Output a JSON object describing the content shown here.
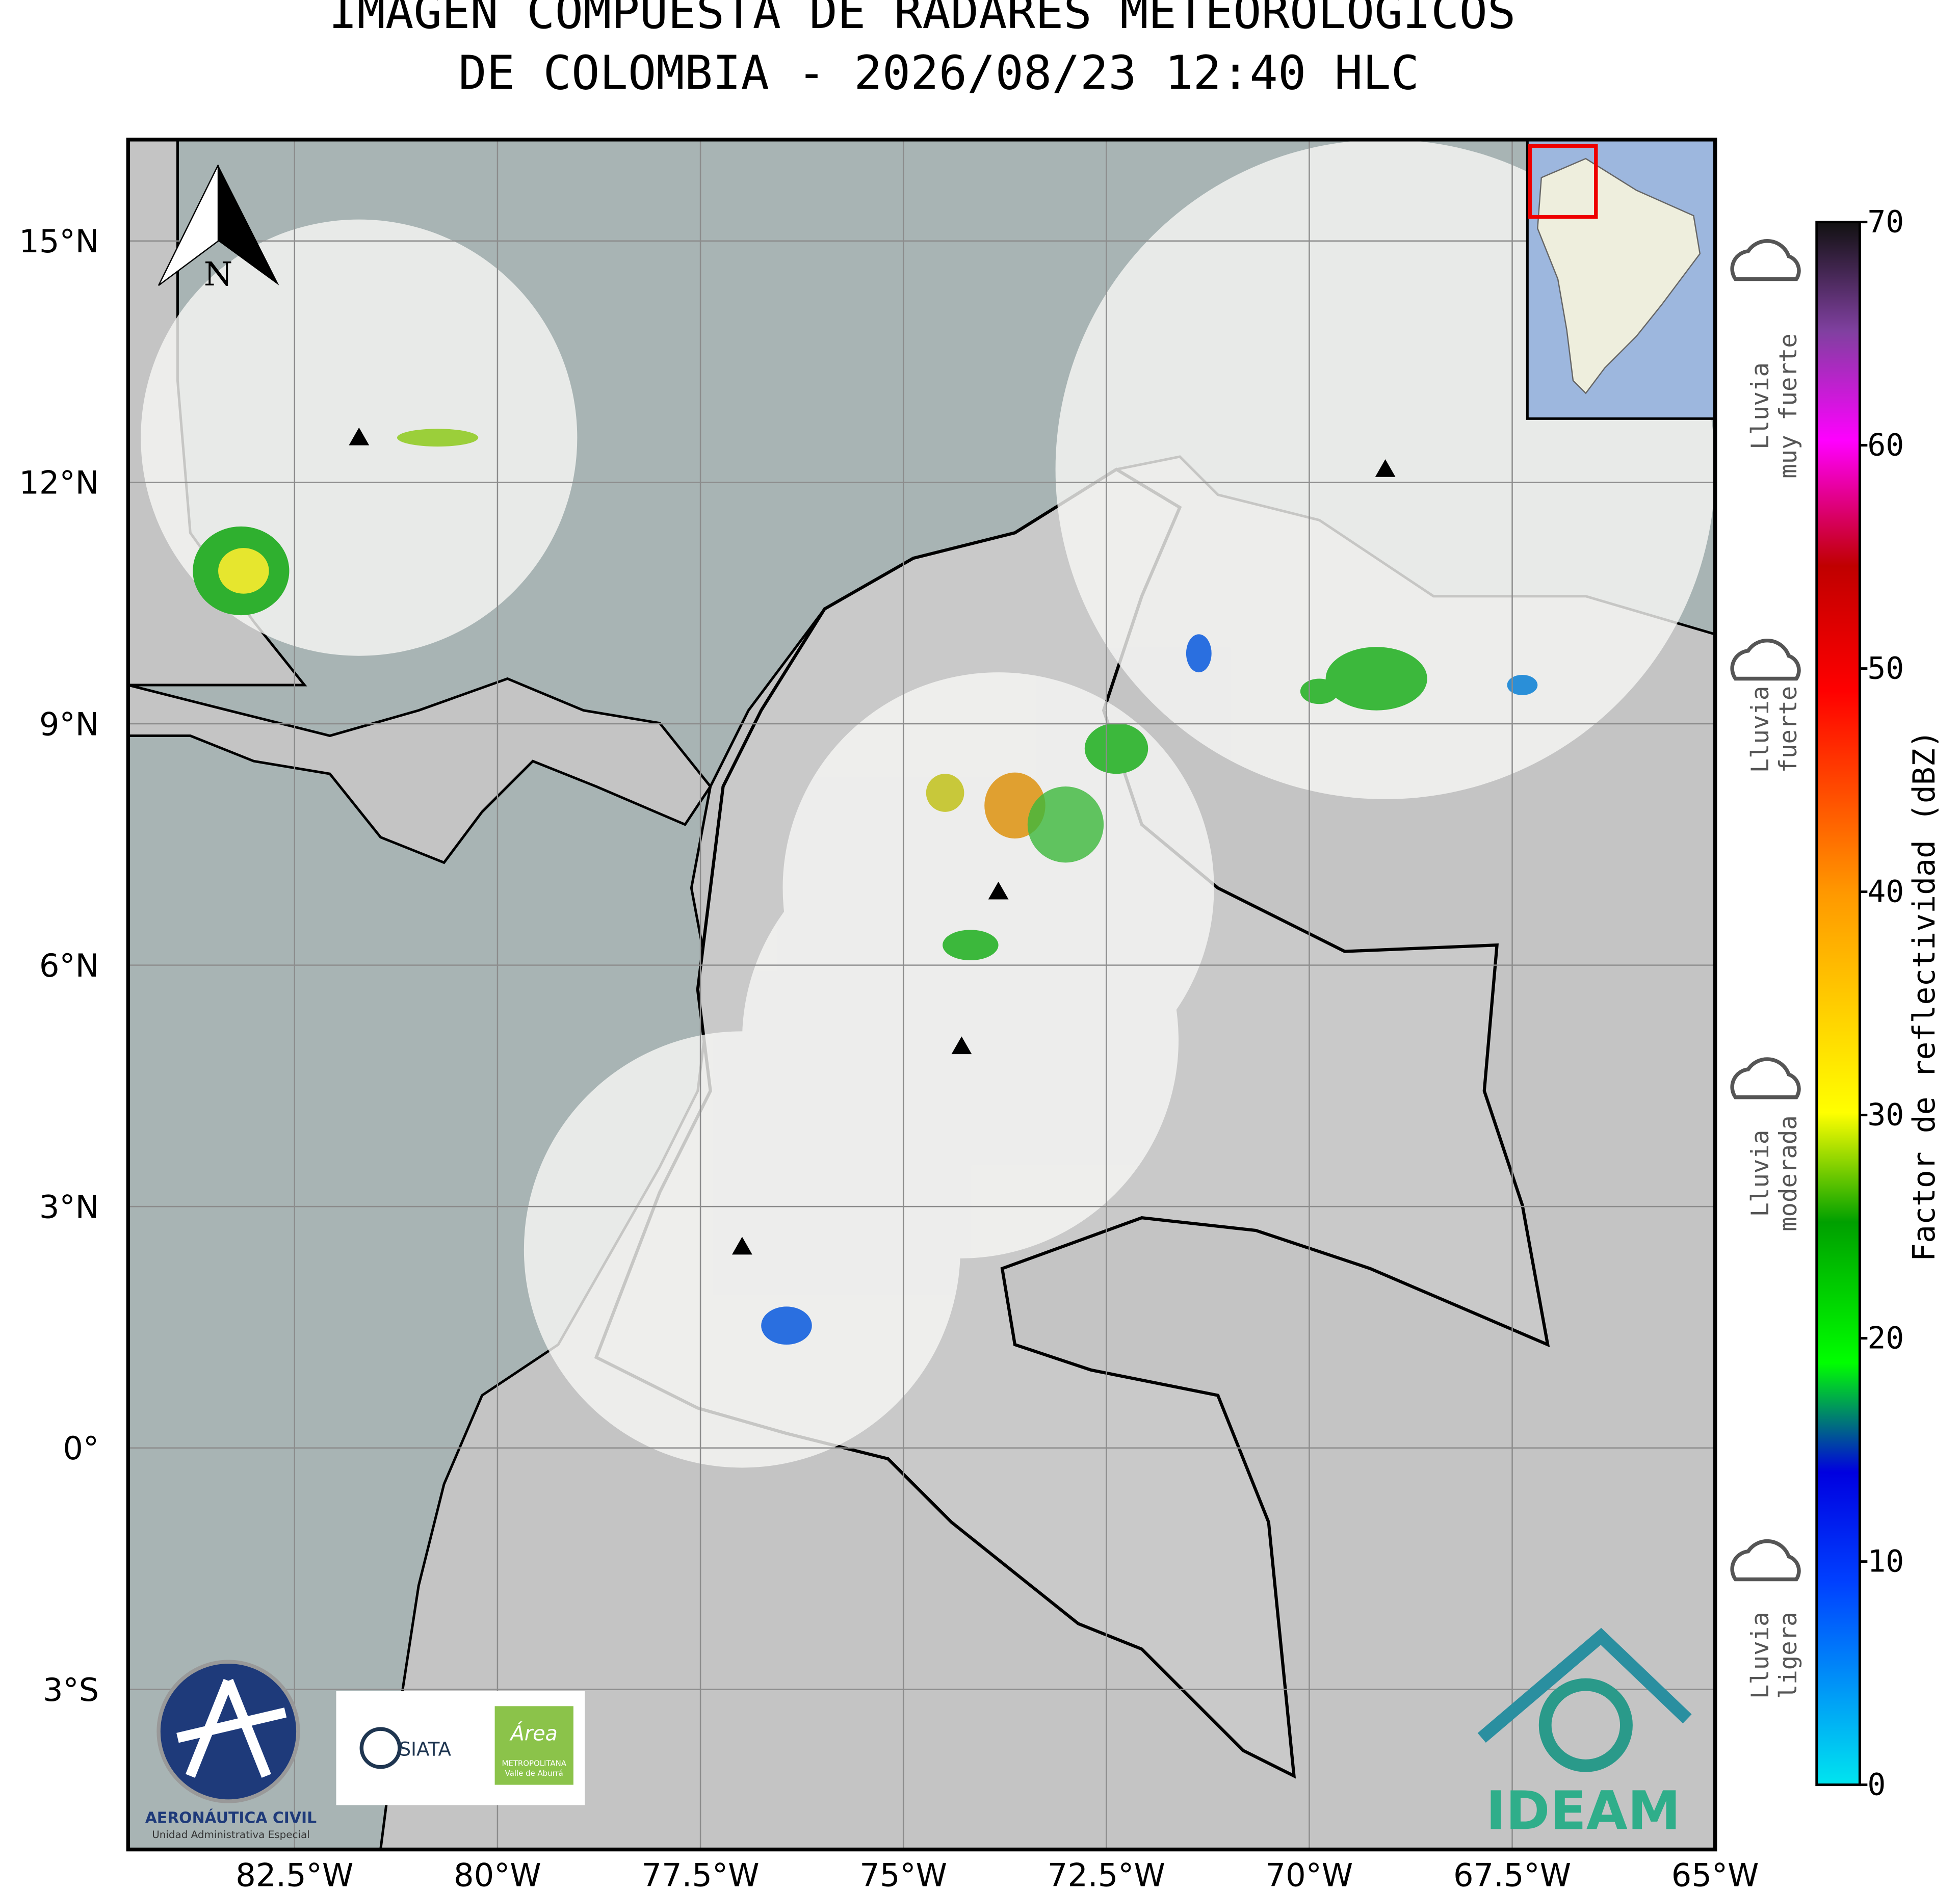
{
  "header": {
    "title_lines": [
      "IMAGEN COMPUESTA DE RADARES METEOROLOGICOS",
      "DE COLOMBIA - 2026/08/23 12:40 HLC"
    ]
  },
  "map": {
    "lon_range": [
      -84.55,
      -65
    ],
    "lat_range": [
      -4.99,
      16.26
    ],
    "lon_ticks": [
      {
        "value": -82.5,
        "label": "82.5°W"
      },
      {
        "value": -80,
        "label": "80°W"
      },
      {
        "value": -77.5,
        "label": "77.5°W"
      },
      {
        "value": -75,
        "label": "75°W"
      },
      {
        "value": -72.5,
        "label": "72.5°W"
      },
      {
        "value": -70,
        "label": "70°W"
      },
      {
        "value": -67.5,
        "label": "67.5°W"
      },
      {
        "value": -65,
        "label": "65°W"
      }
    ],
    "lat_ticks": [
      {
        "value": 15,
        "label": "15°N"
      },
      {
        "value": 12,
        "label": "12°N"
      },
      {
        "value": 9,
        "label": "9°N"
      },
      {
        "value": 6,
        "label": "6°N"
      },
      {
        "value": 3,
        "label": "3°N"
      },
      {
        "value": 0,
        "label": "0°"
      },
      {
        "value": -3,
        "label": "3°S"
      }
    ],
    "north_label": "N"
  },
  "colorbar": {
    "label": "Factor de reflectividad (dBZ)",
    "range": [
      0,
      70
    ],
    "ticks": [
      0,
      10,
      20,
      30,
      40,
      50,
      60,
      70
    ]
  },
  "rain_legend": [
    {
      "lines": [
        "Lluvia",
        "muy fuerte"
      ]
    },
    {
      "lines": [
        "Lluvia",
        "fuerte"
      ]
    },
    {
      "lines": [
        "Lluvia",
        "moderada"
      ]
    },
    {
      "lines": [
        "Lluvia",
        "ligera"
      ]
    }
  ],
  "logos": {
    "aerocivil": [
      "AERONÁUTICA CIVIL",
      "Unidad Administrativa Especial"
    ],
    "siata": "SIATA",
    "area": [
      "Área",
      "METROPOLITANA",
      "Valle de Aburrá"
    ],
    "ideam": "IDEAM"
  }
}
